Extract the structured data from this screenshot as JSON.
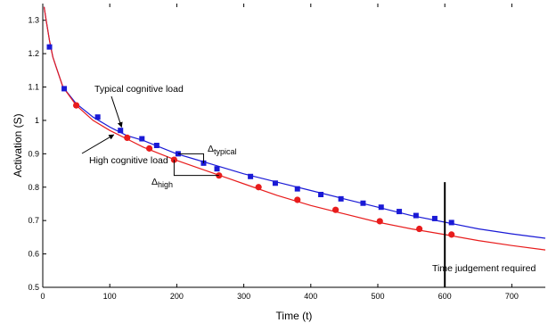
{
  "chart_data": {
    "type": "line",
    "title": "",
    "xlabel": "Time (t)",
    "ylabel": "Activation (S)",
    "xlim": [
      0,
      750
    ],
    "ylim": [
      0.5,
      1.35
    ],
    "x_ticks": [
      0,
      100,
      200,
      300,
      400,
      500,
      600,
      700
    ],
    "x_tick_labels": [
      "0",
      "100",
      "200",
      "300",
      "400",
      "500",
      "600",
      "700"
    ],
    "y_ticks": [
      0.5,
      0.6,
      0.7,
      0.8,
      0.9,
      1.0,
      1.1,
      1.2,
      1.3
    ],
    "y_tick_labels": [
      "0.5",
      "0.6",
      "0.7",
      "0.8",
      "0.9",
      "1",
      "1.1",
      "1.2",
      "1.3"
    ],
    "grid": false,
    "series": [
      {
        "key": "typical",
        "color": "#1a1ad6",
        "marker": "square",
        "line": [
          [
            2,
            1.34
          ],
          [
            5,
            1.3
          ],
          [
            10,
            1.24
          ],
          [
            15,
            1.19
          ],
          [
            20,
            1.16
          ],
          [
            30,
            1.1
          ],
          [
            50,
            1.05
          ],
          [
            75,
            1.01
          ],
          [
            100,
            0.98
          ],
          [
            125,
            0.955
          ],
          [
            150,
            0.94
          ],
          [
            175,
            0.92
          ],
          [
            200,
            0.9
          ],
          [
            225,
            0.885
          ],
          [
            250,
            0.87
          ],
          [
            275,
            0.855
          ],
          [
            300,
            0.84
          ],
          [
            350,
            0.815
          ],
          [
            400,
            0.79
          ],
          [
            450,
            0.765
          ],
          [
            500,
            0.74
          ],
          [
            550,
            0.715
          ],
          [
            600,
            0.695
          ],
          [
            650,
            0.675
          ],
          [
            700,
            0.66
          ],
          [
            750,
            0.647
          ]
        ],
        "markers": [
          [
            10,
            1.22
          ],
          [
            32,
            1.095
          ],
          [
            82,
            1.01
          ],
          [
            116,
            0.97
          ],
          [
            148,
            0.945
          ],
          [
            170,
            0.925
          ],
          [
            202,
            0.9
          ],
          [
            240,
            0.872
          ],
          [
            260,
            0.855
          ],
          [
            310,
            0.832
          ],
          [
            347,
            0.812
          ],
          [
            380,
            0.795
          ],
          [
            415,
            0.778
          ],
          [
            445,
            0.765
          ],
          [
            478,
            0.752
          ],
          [
            505,
            0.74
          ],
          [
            532,
            0.727
          ],
          [
            557,
            0.715
          ],
          [
            585,
            0.706
          ],
          [
            610,
            0.694
          ]
        ]
      },
      {
        "key": "high",
        "color": "#e81c1c",
        "marker": "circle",
        "line": [
          [
            2,
            1.34
          ],
          [
            5,
            1.3
          ],
          [
            10,
            1.24
          ],
          [
            15,
            1.19
          ],
          [
            20,
            1.16
          ],
          [
            30,
            1.1
          ],
          [
            50,
            1.045
          ],
          [
            75,
            1.0
          ],
          [
            100,
            0.97
          ],
          [
            125,
            0.945
          ],
          [
            150,
            0.92
          ],
          [
            175,
            0.9
          ],
          [
            200,
            0.88
          ],
          [
            250,
            0.845
          ],
          [
            300,
            0.81
          ],
          [
            350,
            0.775
          ],
          [
            400,
            0.745
          ],
          [
            450,
            0.72
          ],
          [
            500,
            0.695
          ],
          [
            550,
            0.675
          ],
          [
            600,
            0.658
          ],
          [
            650,
            0.64
          ],
          [
            700,
            0.625
          ],
          [
            750,
            0.612
          ]
        ],
        "markers": [
          [
            50,
            1.045
          ],
          [
            126,
            0.948
          ],
          [
            159,
            0.916
          ],
          [
            196,
            0.882
          ],
          [
            263,
            0.835
          ],
          [
            322,
            0.8
          ],
          [
            380,
            0.762
          ],
          [
            437,
            0.732
          ],
          [
            503,
            0.698
          ],
          [
            562,
            0.675
          ],
          [
            610,
            0.658
          ]
        ]
      }
    ],
    "annotations": {
      "typical_label": "Typical cognitive load",
      "high_label": "High cognitive load",
      "delta_typical_symbol": "Δ",
      "delta_typical_sub": "typical",
      "delta_high_symbol": "Δ",
      "delta_high_sub": "high",
      "judgement_label": "Time judgement required",
      "judgement_x": 600
    }
  }
}
